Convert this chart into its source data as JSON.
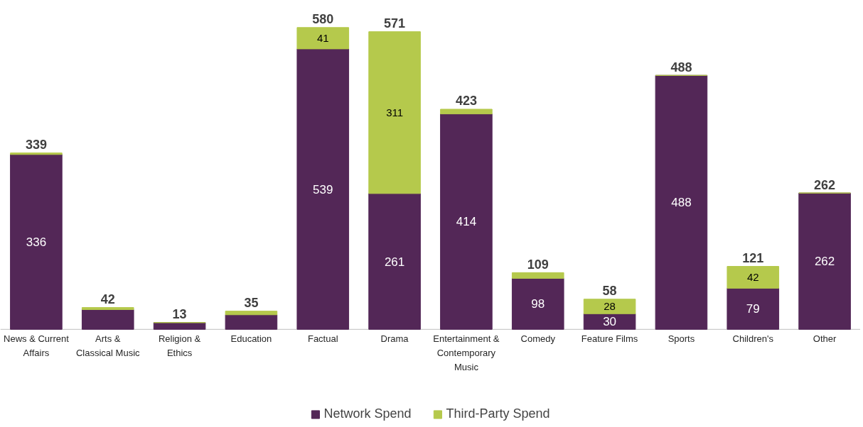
{
  "chart_data": {
    "type": "bar",
    "stacked": true,
    "legend": "bottom",
    "grid": false,
    "categories": [
      "News & Current Affairs",
      "Arts & Classical Music",
      "Religion & Ethics",
      "Education",
      "Factual",
      "Drama",
      "Entertainment & Contemporary Music",
      "Comedy",
      "Feature Films",
      "Sports",
      "Children's",
      "Other"
    ],
    "series": [
      {
        "name": "Network Spend",
        "color": "#532757",
        "values": [
          336,
          38,
          13,
          28,
          539,
          261,
          414,
          98,
          30,
          488,
          79,
          262
        ],
        "value_labels": [
          "336",
          null,
          null,
          null,
          "539",
          "261",
          "414",
          "98",
          "30",
          "488",
          "79",
          "262"
        ]
      },
      {
        "name": "Third-Party Spend",
        "color": "#b5c94c",
        "values": [
          3,
          4,
          0,
          7,
          41,
          311,
          9,
          11,
          28,
          0,
          42,
          0
        ],
        "value_labels": [
          null,
          null,
          null,
          null,
          "41",
          "311",
          null,
          null,
          "28",
          null,
          "42",
          null
        ]
      }
    ],
    "totals": [
      "339",
      "42",
      "13",
      "35",
      "580",
      "571",
      "423",
      "109",
      "58",
      "488",
      "121",
      "262"
    ]
  }
}
